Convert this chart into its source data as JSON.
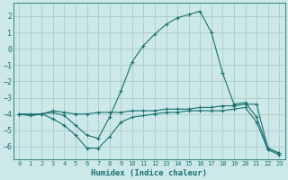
{
  "xlabel": "Humidex (Indice chaleur)",
  "bg_color": "#cce8e8",
  "grid_color": "#aacccc",
  "line_color": "#1a7070",
  "xlim": [
    -0.5,
    23.5
  ],
  "ylim": [
    -6.8,
    2.8
  ],
  "yticks": [
    -6,
    -5,
    -4,
    -3,
    -2,
    -1,
    0,
    1,
    2
  ],
  "xticks": [
    0,
    1,
    2,
    3,
    4,
    5,
    6,
    7,
    8,
    9,
    10,
    11,
    12,
    13,
    14,
    15,
    16,
    17,
    18,
    19,
    20,
    21,
    22,
    23
  ],
  "series": [
    {
      "x": [
        0,
        1,
        2,
        3,
        4,
        5,
        6,
        7,
        8,
        9,
        10,
        11,
        12,
        13,
        14,
        15,
        16,
        17,
        18,
        19,
        20,
        21,
        22,
        23
      ],
      "y": [
        -4.0,
        -4.1,
        -4.0,
        -3.9,
        -4.1,
        -4.7,
        -5.3,
        -5.5,
        -4.2,
        -2.6,
        -0.8,
        0.2,
        0.9,
        1.5,
        1.9,
        2.1,
        2.3,
        1.0,
        -1.5,
        -3.4,
        -3.3,
        -4.2,
        -6.1,
        -6.4
      ]
    },
    {
      "x": [
        0,
        1,
        2,
        3,
        4,
        5,
        6,
        7,
        8,
        9,
        10,
        11,
        12,
        13,
        14,
        15,
        16,
        17,
        18,
        19,
        20,
        21,
        22,
        23
      ],
      "y": [
        -4.0,
        -4.0,
        -4.0,
        -3.8,
        -3.9,
        -4.0,
        -4.0,
        -3.9,
        -3.9,
        -3.9,
        -3.8,
        -3.8,
        -3.8,
        -3.7,
        -3.7,
        -3.7,
        -3.6,
        -3.6,
        -3.5,
        -3.5,
        -3.4,
        -3.4,
        -6.1,
        -6.4
      ]
    },
    {
      "x": [
        0,
        1,
        2,
        3,
        4,
        5,
        6,
        7,
        8,
        9,
        10,
        11,
        12,
        13,
        14,
        15,
        16,
        17,
        18,
        19,
        20,
        21,
        22,
        23
      ],
      "y": [
        -4.0,
        -4.1,
        -4.0,
        -4.3,
        -4.7,
        -5.3,
        -6.1,
        -6.1,
        -5.4,
        -4.5,
        -4.2,
        -4.1,
        -4.0,
        -3.9,
        -3.9,
        -3.8,
        -3.8,
        -3.8,
        -3.8,
        -3.7,
        -3.6,
        -4.5,
        -6.2,
        -6.5
      ]
    }
  ]
}
